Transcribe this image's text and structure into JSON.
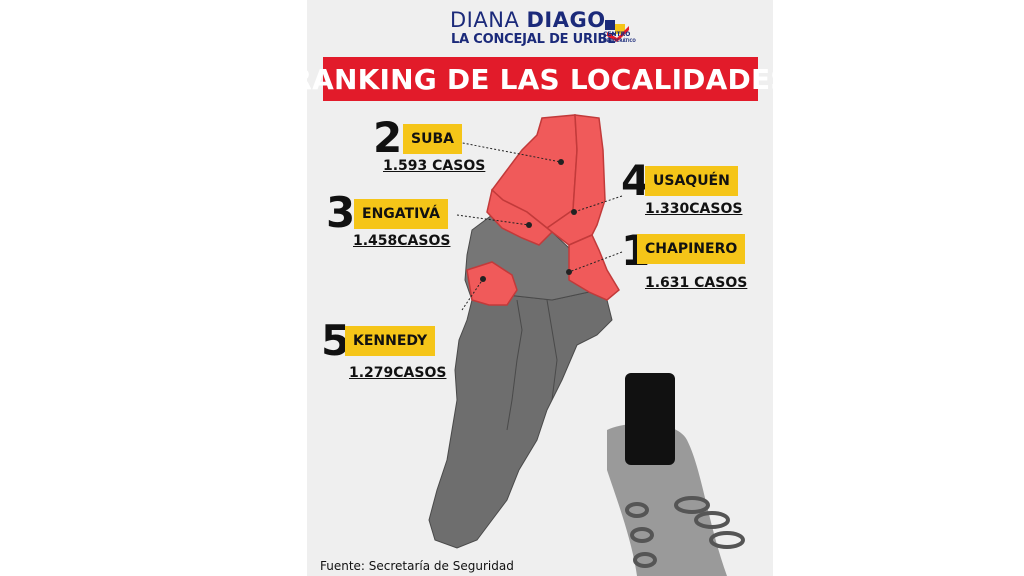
{
  "brand": {
    "first_name": "DIANA",
    "last_name": "DIAGO",
    "tagline": "LA CONCEJAL DE URIBE",
    "party_line1": "CENTRO",
    "party_line2": "DEMOCRÁTICO"
  },
  "title": "RANKING DE LAS LOCALIDADES",
  "localities": [
    {
      "rank": "1",
      "name": "CHAPINERO",
      "cases": "1.631 CASOS"
    },
    {
      "rank": "2",
      "name": "SUBA",
      "cases": "1.593 CASOS"
    },
    {
      "rank": "3",
      "name": "ENGATIVÁ",
      "cases": "1.458CASOS"
    },
    {
      "rank": "4",
      "name": "USAQUÉN",
      "cases": "1.330CASOS"
    },
    {
      "rank": "5",
      "name": "KENNEDY",
      "cases": "1.279CASOS"
    }
  ],
  "source": "Fuente: Secretaría de Seguridad",
  "colors": {
    "highlight": "#f05a5a",
    "map_gray": "#6e6e6e",
    "title_bar": "#e21b2a",
    "tag": "#f5c518",
    "brand": "#1b2a7a"
  }
}
